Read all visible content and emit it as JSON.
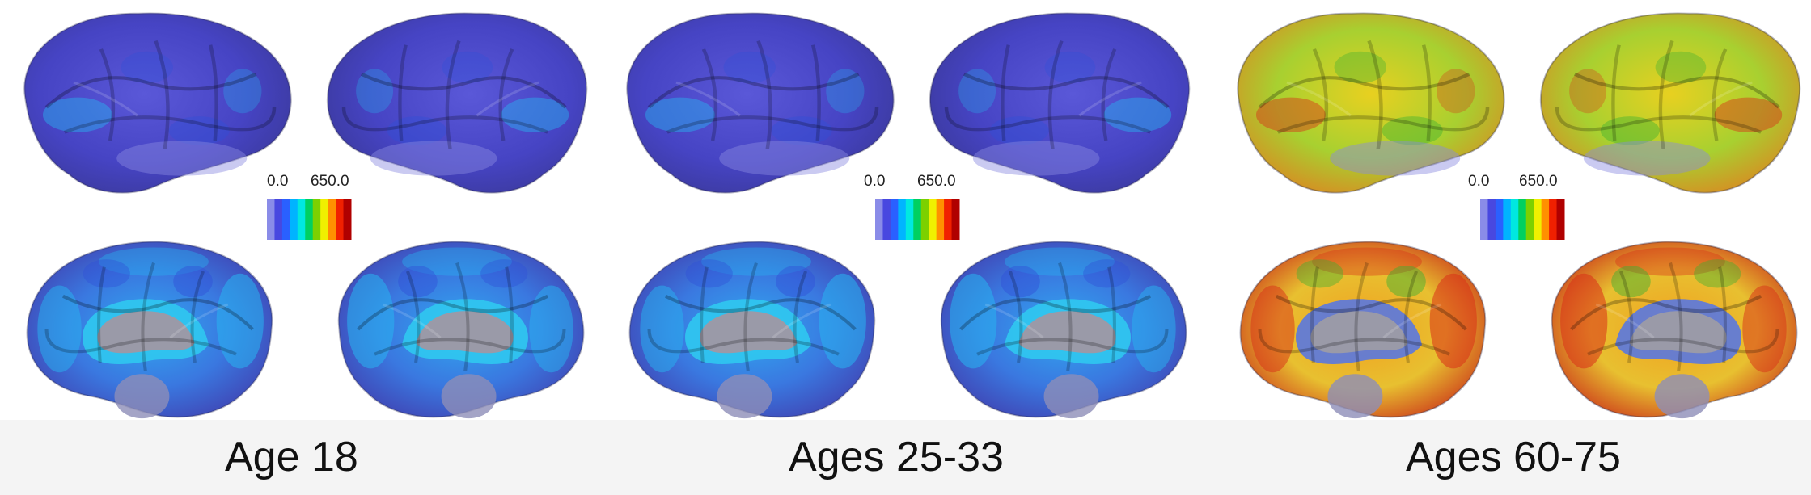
{
  "figure": {
    "groups": [
      {
        "label": "Age 18",
        "palette": "cool",
        "colorbar": {
          "min_label": "0.0",
          "max_label": "650.0"
        }
      },
      {
        "label": "Ages 25-33",
        "palette": "cool",
        "colorbar": {
          "min_label": "0.0",
          "max_label": "650.0"
        }
      },
      {
        "label": "Ages 60-75",
        "palette": "hot",
        "colorbar": {
          "min_label": "0.0",
          "max_label": "650.0"
        }
      }
    ],
    "colorbar_colors": [
      "#8a8ce8",
      "#4848e0",
      "#2a60ff",
      "#00b4ff",
      "#00e8e0",
      "#00d060",
      "#7cd000",
      "#f0f000",
      "#ff9000",
      "#f02000",
      "#b00000"
    ],
    "colors": {
      "cool_base": "#4b48c8",
      "cool_highlight": "#28b4f0",
      "hot_base": "#d8d020",
      "hot_highlight": "#d83018",
      "gray_region": "#9a9aa8"
    }
  }
}
